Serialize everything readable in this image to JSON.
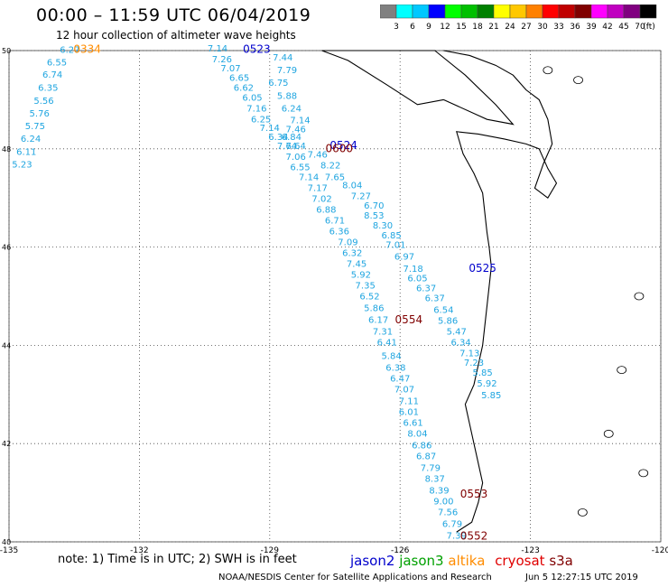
{
  "header": {
    "title": "00:00 – 11:59 UTC 06/04/2019",
    "subtitle": "12 hour collection of altimeter wave heights"
  },
  "legend": {
    "unit": "(ft)",
    "levels": [
      {
        "label": "3",
        "color": "#808080"
      },
      {
        "label": "6",
        "color": "#00ffff"
      },
      {
        "label": "9",
        "color": "#00c8ff"
      },
      {
        "label": "12",
        "color": "#0000ff"
      },
      {
        "label": "15",
        "color": "#00ff00"
      },
      {
        "label": "18",
        "color": "#00c000"
      },
      {
        "label": "21",
        "color": "#008000"
      },
      {
        "label": "24",
        "color": "#ffff00"
      },
      {
        "label": "27",
        "color": "#ffc800"
      },
      {
        "label": "30",
        "color": "#ff8000"
      },
      {
        "label": "33",
        "color": "#ff0000"
      },
      {
        "label": "36",
        "color": "#c00000"
      },
      {
        "label": "39",
        "color": "#800000"
      },
      {
        "label": "42",
        "color": "#ff00ff"
      },
      {
        "label": "45",
        "color": "#c000c0"
      },
      {
        "label": "70",
        "color": "#800080"
      },
      {
        "label": "",
        "color": "#000000"
      }
    ]
  },
  "axes": {
    "lon_ticks": [
      "-135",
      "-132",
      "-129",
      "-126",
      "-123",
      "-120"
    ],
    "lat_ticks": [
      "50",
      "48",
      "46",
      "44",
      "42",
      "40"
    ],
    "lon_values": [
      -135,
      -132,
      -129,
      -126,
      -123,
      -120
    ],
    "lat_values": [
      50,
      48,
      46,
      44,
      42,
      40
    ]
  },
  "chart_data": {
    "type": "map",
    "extent": {
      "lon": [
        -135,
        -120
      ],
      "lat": [
        40,
        50
      ]
    },
    "grid": true,
    "time_labels": [
      {
        "text": "0334",
        "lon": -133.2,
        "lat": 49.95,
        "color": "#ff8c00"
      },
      {
        "text": "0523",
        "lon": -129.3,
        "lat": 49.95,
        "color": "#0000cc"
      },
      {
        "text": "0524",
        "lon": -127.3,
        "lat": 48.0,
        "color": "#0000cc"
      },
      {
        "text": "0600",
        "lon": -127.4,
        "lat": 47.93,
        "color": "#800000"
      },
      {
        "text": "0525",
        "lon": -124.1,
        "lat": 45.5,
        "color": "#0000cc"
      },
      {
        "text": "0554",
        "lon": -125.8,
        "lat": 44.45,
        "color": "#800000"
      },
      {
        "text": "0553",
        "lon": -124.3,
        "lat": 40.9,
        "color": "#800000"
      },
      {
        "text": "0552",
        "lon": -124.3,
        "lat": 40.05,
        "color": "#800000"
      }
    ],
    "tracks": [
      {
        "satellite": "jason2",
        "color": "#1fa5e0",
        "points": [
          {
            "lon": -133.6,
            "lat": 49.95,
            "swh": "6.27"
          },
          {
            "lon": -133.9,
            "lat": 49.7,
            "swh": "6.55"
          },
          {
            "lon": -134.0,
            "lat": 49.45,
            "swh": "6.74"
          },
          {
            "lon": -134.1,
            "lat": 49.18,
            "swh": "6.35"
          },
          {
            "lon": -134.2,
            "lat": 48.92,
            "swh": "5.56"
          },
          {
            "lon": -134.3,
            "lat": 48.66,
            "swh": "5.76"
          },
          {
            "lon": -134.4,
            "lat": 48.4,
            "swh": "5.75"
          },
          {
            "lon": -134.5,
            "lat": 48.14,
            "swh": "6.24"
          },
          {
            "lon": -134.6,
            "lat": 47.88,
            "swh": "6.11"
          },
          {
            "lon": -134.7,
            "lat": 47.62,
            "swh": "5.23"
          }
        ]
      },
      {
        "satellite": "jason2",
        "color": "#1fa5e0",
        "points": [
          {
            "lon": -130.2,
            "lat": 49.98,
            "swh": "7.14"
          },
          {
            "lon": -130.1,
            "lat": 49.76,
            "swh": "7.26"
          },
          {
            "lon": -129.9,
            "lat": 49.58,
            "swh": "7.07"
          },
          {
            "lon": -129.7,
            "lat": 49.38,
            "swh": "6.65"
          },
          {
            "lon": -129.6,
            "lat": 49.18,
            "swh": "6.62"
          },
          {
            "lon": -129.4,
            "lat": 48.98,
            "swh": "6.05"
          },
          {
            "lon": -129.3,
            "lat": 48.76,
            "swh": "7.16"
          },
          {
            "lon": -129.2,
            "lat": 48.54,
            "swh": "6.25"
          },
          {
            "lon": -129.0,
            "lat": 48.36,
            "swh": "7.14"
          },
          {
            "lon": -128.8,
            "lat": 48.18,
            "swh": "6.34"
          },
          {
            "lon": -128.6,
            "lat": 48.0,
            "swh": "7.64"
          },
          {
            "lon": -128.4,
            "lat": 47.78,
            "swh": "7.06"
          },
          {
            "lon": -128.3,
            "lat": 47.56,
            "swh": "6.55"
          },
          {
            "lon": -128.1,
            "lat": 47.36,
            "swh": "7.14"
          },
          {
            "lon": -127.9,
            "lat": 47.14,
            "swh": "7.17"
          },
          {
            "lon": -127.8,
            "lat": 46.92,
            "swh": "7.02"
          },
          {
            "lon": -127.7,
            "lat": 46.7,
            "swh": "6.88"
          },
          {
            "lon": -127.5,
            "lat": 46.48,
            "swh": "6.71"
          },
          {
            "lon": -127.4,
            "lat": 46.26,
            "swh": "6.36"
          },
          {
            "lon": -127.2,
            "lat": 46.04,
            "swh": "7.09"
          },
          {
            "lon": -127.1,
            "lat": 45.82,
            "swh": "6.32"
          },
          {
            "lon": -127.0,
            "lat": 45.6,
            "swh": "7.45"
          },
          {
            "lon": -126.9,
            "lat": 45.38,
            "swh": "5.92"
          },
          {
            "lon": -126.8,
            "lat": 45.16,
            "swh": "7.35"
          },
          {
            "lon": -126.7,
            "lat": 44.94,
            "swh": "6.52"
          },
          {
            "lon": -126.6,
            "lat": 44.7,
            "swh": "5.86"
          },
          {
            "lon": -126.5,
            "lat": 44.46,
            "swh": "6.17"
          },
          {
            "lon": -126.4,
            "lat": 44.22,
            "swh": "7.31"
          },
          {
            "lon": -126.3,
            "lat": 44.0,
            "swh": "6.41"
          },
          {
            "lon": -126.2,
            "lat": 43.72,
            "swh": "5.84"
          },
          {
            "lon": -126.1,
            "lat": 43.48,
            "swh": "6.38"
          },
          {
            "lon": -126.0,
            "lat": 43.26,
            "swh": "6.47"
          },
          {
            "lon": -125.9,
            "lat": 43.04,
            "swh": "7.07"
          },
          {
            "lon": -125.8,
            "lat": 42.8,
            "swh": "7.11"
          },
          {
            "lon": -125.8,
            "lat": 42.58,
            "swh": "6.01"
          },
          {
            "lon": -125.7,
            "lat": 42.36,
            "swh": "6.61"
          },
          {
            "lon": -125.6,
            "lat": 42.14,
            "swh": "8.04"
          },
          {
            "lon": -125.5,
            "lat": 41.9,
            "swh": "6.86"
          },
          {
            "lon": -125.4,
            "lat": 41.68,
            "swh": "6.87"
          },
          {
            "lon": -125.3,
            "lat": 41.44,
            "swh": "7.79"
          },
          {
            "lon": -125.2,
            "lat": 41.22,
            "swh": "8.37"
          },
          {
            "lon": -125.1,
            "lat": 40.98,
            "swh": "8.39"
          },
          {
            "lon": -125.0,
            "lat": 40.76,
            "swh": "9.00"
          },
          {
            "lon": -124.9,
            "lat": 40.54,
            "swh": "7.56"
          },
          {
            "lon": -124.8,
            "lat": 40.3,
            "swh": "6.79"
          },
          {
            "lon": -124.7,
            "lat": 40.06,
            "swh": "7.39"
          }
        ]
      },
      {
        "satellite": "jason2",
        "color": "#1fa5e0",
        "points": [
          {
            "lon": -128.7,
            "lat": 49.8,
            "swh": "7.44"
          },
          {
            "lon": -128.6,
            "lat": 49.54,
            "swh": "7.79"
          },
          {
            "lon": -128.8,
            "lat": 49.28,
            "swh": "6.75"
          },
          {
            "lon": -128.6,
            "lat": 49.02,
            "swh": "5.88"
          },
          {
            "lon": -128.5,
            "lat": 48.76,
            "swh": "6.24"
          },
          {
            "lon": -128.3,
            "lat": 48.52,
            "swh": "7.14"
          },
          {
            "lon": -128.4,
            "lat": 48.34,
            "swh": "7.46"
          },
          {
            "lon": -128.5,
            "lat": 48.18,
            "swh": "6.84"
          },
          {
            "lon": -128.4,
            "lat": 48.0,
            "swh": "7.64"
          },
          {
            "lon": -127.9,
            "lat": 47.82,
            "swh": "7.46"
          },
          {
            "lon": -127.6,
            "lat": 47.6,
            "swh": "8.22"
          },
          {
            "lon": -127.5,
            "lat": 47.36,
            "swh": "7.65"
          },
          {
            "lon": -127.1,
            "lat": 47.2,
            "swh": "8.04"
          },
          {
            "lon": -126.9,
            "lat": 46.98,
            "swh": "7.27"
          },
          {
            "lon": -126.6,
            "lat": 46.78,
            "swh": "6.70"
          },
          {
            "lon": -126.6,
            "lat": 46.58,
            "swh": "8.53"
          },
          {
            "lon": -126.4,
            "lat": 46.38,
            "swh": "8.30"
          },
          {
            "lon": -126.2,
            "lat": 46.18,
            "swh": "6.85"
          },
          {
            "lon": -126.1,
            "lat": 45.98,
            "swh": "7.01"
          },
          {
            "lon": -125.9,
            "lat": 45.74,
            "swh": "6.97"
          },
          {
            "lon": -125.7,
            "lat": 45.5,
            "swh": "7.18"
          },
          {
            "lon": -125.6,
            "lat": 45.3,
            "swh": "6.05"
          },
          {
            "lon": -125.4,
            "lat": 45.1,
            "swh": "6.37"
          },
          {
            "lon": -125.2,
            "lat": 44.9,
            "swh": "6.37"
          },
          {
            "lon": -125.0,
            "lat": 44.66,
            "swh": "6.54"
          },
          {
            "lon": -124.9,
            "lat": 44.44,
            "swh": "5.86"
          },
          {
            "lon": -124.7,
            "lat": 44.22,
            "swh": "5.47"
          },
          {
            "lon": -124.6,
            "lat": 44.0,
            "swh": "6.34"
          },
          {
            "lon": -124.4,
            "lat": 43.78,
            "swh": "7.13"
          },
          {
            "lon": -124.3,
            "lat": 43.58,
            "swh": "7.23"
          },
          {
            "lon": -124.1,
            "lat": 43.38,
            "swh": "5.85"
          },
          {
            "lon": -124.0,
            "lat": 43.16,
            "swh": "5.92"
          },
          {
            "lon": -123.9,
            "lat": 42.92,
            "swh": "5.85"
          }
        ]
      }
    ]
  },
  "note": {
    "text": "note:  1) Time is in UTC;  2) SWH is in feet",
    "satellites": [
      {
        "name": "jason2",
        "color": "#0000cc"
      },
      {
        "name": "jason3",
        "color": "#00a000"
      },
      {
        "name": "altika",
        "color": "#ff8c00"
      },
      {
        "name": "cryosat",
        "color": "#e00000"
      },
      {
        "name": "s3a",
        "color": "#800000"
      }
    ]
  },
  "footer": {
    "left": "NOAA/NESDIS Center for Satellite Applications and Research",
    "right": "Jun  5 12:27:15 UTC 2019"
  }
}
